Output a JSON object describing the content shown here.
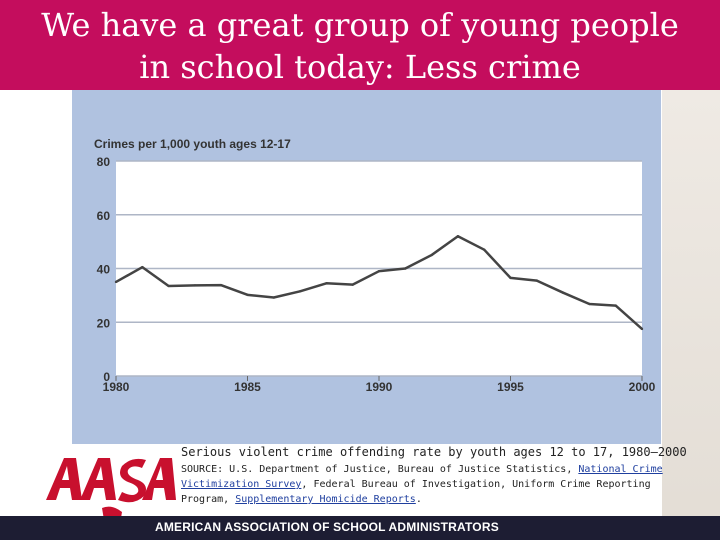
{
  "slide": {
    "title_line1": "We have a great group of young people",
    "title_line2": "in school today: Less crime",
    "caption": "Serious violent crime offending rate by youth ages 12 to 17, 1980–2000",
    "source": {
      "prefix": "SOURCE: U.S. Department of Justice, Bureau of Justice Statistics, ",
      "link1": "National Crime Victimization Survey",
      "middle": ", Federal Bureau of Investigation, Uniform Crime Reporting Program, ",
      "link2": "Supplementary Homicide Reports",
      "suffix": "."
    },
    "footer_text": "AMERICAN ASSOCIATION OF SCHOOL ADMINISTRATORS",
    "logo_text": "AASA"
  },
  "colors": {
    "header": "#c40d5d",
    "chart_panel": "#b0c2e0",
    "line": "#444444",
    "logo": "#c8102e",
    "footer": "#1d1d33"
  },
  "chart_data": {
    "type": "line",
    "ylabel": "Crimes per 1,000 youth ages 12-17",
    "xlabel": "",
    "xlim": [
      1980,
      2000
    ],
    "ylim": [
      0,
      80
    ],
    "x_ticks": [
      1980,
      1985,
      1990,
      1995,
      2000
    ],
    "y_ticks": [
      0,
      20,
      40,
      60,
      80
    ],
    "grid": true,
    "x": [
      1980,
      1981,
      1982,
      1983,
      1984,
      1985,
      1986,
      1987,
      1988,
      1989,
      1990,
      1991,
      1992,
      1993,
      1994,
      1995,
      1996,
      1997,
      1998,
      1999,
      2000
    ],
    "series": [
      {
        "values": [
          35,
          40.5,
          33.5,
          33.7,
          33.8,
          30.2,
          29.2,
          31.5,
          34.5,
          34,
          39,
          40,
          45,
          52,
          47,
          36.5,
          35.5,
          31,
          26.8,
          26.2,
          17.5
        ]
      }
    ]
  }
}
